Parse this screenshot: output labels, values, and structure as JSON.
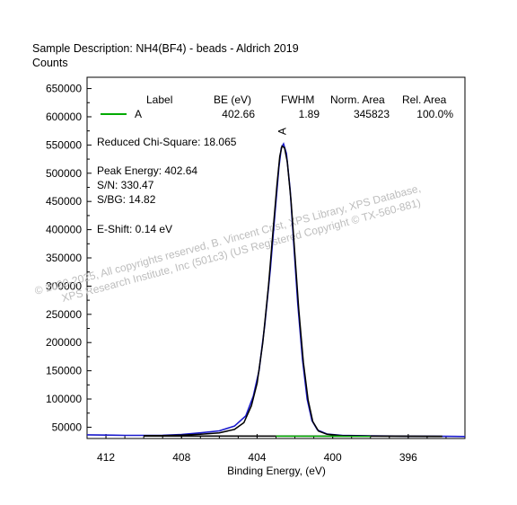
{
  "header": {
    "description": "Sample Description:  NH4(BF4) - beads - Aldrich 2019",
    "ylabel": "Counts"
  },
  "chart_data": {
    "type": "line",
    "xlabel": "Binding Energy, (eV)",
    "ylabel": "Counts",
    "xlim": [
      413,
      393
    ],
    "ylim": [
      30000,
      670000
    ],
    "x_reversed": true,
    "x_ticks": [
      "412",
      "408",
      "404",
      "400",
      "396"
    ],
    "y_ticks": [
      "650000",
      "600000",
      "550000",
      "500000",
      "450000",
      "400000",
      "350000",
      "300000",
      "250000",
      "200000",
      "150000",
      "100000",
      "50000"
    ],
    "grid": false,
    "legend": {
      "position": "top",
      "headers": [
        "Label",
        "BE (eV)",
        "FWHM",
        "Norm. Area",
        "Rel. Area"
      ],
      "rows": [
        {
          "label": "A",
          "be": "402.66",
          "fwhm": "1.89",
          "norm_area": "345823",
          "rel_area": "100.0%",
          "color": "#00aa00"
        }
      ]
    },
    "annotations": {
      "chi_square": "Reduced Chi-Square: 18.065",
      "peak_energy": "Peak Energy: 402.64",
      "sn": "S/N: 330.47",
      "sbg": "S/BG: 14.82",
      "eshift": "E-Shift: 0.14 eV",
      "peak_label": "A"
    },
    "series": [
      {
        "color": "#1a1acc",
        "points": [
          [
            413,
            36500
          ],
          [
            411,
            35500
          ],
          [
            409,
            35800
          ],
          [
            408,
            37000
          ],
          [
            407,
            40000
          ],
          [
            406,
            43500
          ],
          [
            405.2,
            52000
          ],
          [
            404.6,
            70000
          ],
          [
            404.2,
            105000
          ],
          [
            403.9,
            150000
          ],
          [
            403.6,
            230000
          ],
          [
            403.3,
            330000
          ],
          [
            403.05,
            430000
          ],
          [
            402.85,
            510000
          ],
          [
            402.72,
            545000
          ],
          [
            402.6,
            552000
          ],
          [
            402.45,
            535000
          ],
          [
            402.25,
            470000
          ],
          [
            402.05,
            370000
          ],
          [
            401.85,
            270000
          ],
          [
            401.6,
            170000
          ],
          [
            401.35,
            100000
          ],
          [
            401.1,
            62000
          ],
          [
            400.8,
            45000
          ],
          [
            400.3,
            38000
          ],
          [
            399.5,
            35500
          ],
          [
            398,
            34800
          ],
          [
            396,
            34200
          ],
          [
            394,
            33800
          ],
          [
            393,
            33500
          ]
        ]
      },
      {
        "color": "#000000",
        "points": [
          [
            410,
            35000
          ],
          [
            409,
            35300
          ],
          [
            408,
            36000
          ],
          [
            407,
            37500
          ],
          [
            406,
            40000
          ],
          [
            405.2,
            46000
          ],
          [
            404.7,
            58000
          ],
          [
            404.3,
            88000
          ],
          [
            404.0,
            128000
          ],
          [
            403.7,
            200000
          ],
          [
            403.4,
            300000
          ],
          [
            403.15,
            400000
          ],
          [
            402.95,
            480000
          ],
          [
            402.8,
            530000
          ],
          [
            402.68,
            548000
          ],
          [
            402.55,
            545000
          ],
          [
            402.4,
            520000
          ],
          [
            402.2,
            450000
          ],
          [
            402.0,
            355000
          ],
          [
            401.8,
            260000
          ],
          [
            401.55,
            165000
          ],
          [
            401.3,
            98000
          ],
          [
            401.05,
            60000
          ],
          [
            400.75,
            43000
          ],
          [
            400.3,
            37500
          ],
          [
            399.5,
            35000
          ],
          [
            398,
            34500
          ],
          [
            396,
            34000
          ],
          [
            394.2,
            33600
          ]
        ]
      },
      {
        "color": "#000000",
        "points": [
          [
            410,
            34500
          ],
          [
            394.2,
            34000
          ]
        ]
      },
      {
        "color": "#00aa00",
        "points": [
          [
            403,
            34200
          ],
          [
            398,
            34000
          ]
        ]
      }
    ],
    "watermark": [
      "© 2020-2025,  All copyrights reserved,   B. Vincent Crist,  XPS Library, XPS Database,",
      "XPS Research Institute, Inc (501c3)   (US Registered Copyright © TX-560-881)"
    ]
  }
}
